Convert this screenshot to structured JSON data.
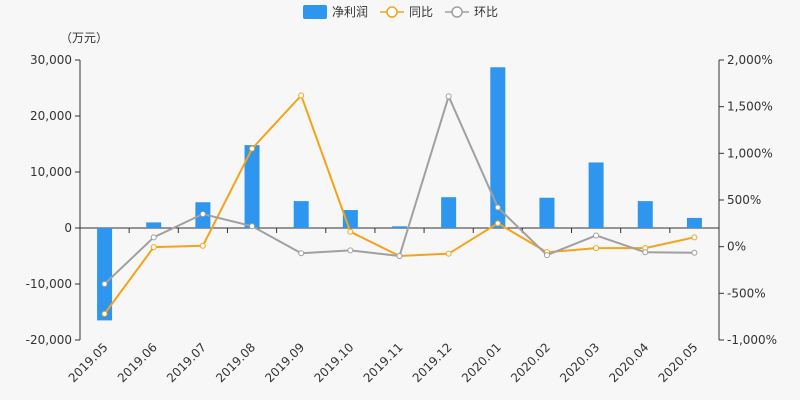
{
  "chart_data": {
    "type": "bar",
    "unit_label": "（万元）",
    "categories": [
      "2019.05",
      "2019.06",
      "2019.07",
      "2019.08",
      "2019.09",
      "2019.10",
      "2019.11",
      "2019.12",
      "2020.01",
      "2020.02",
      "2020.03",
      "2020.04",
      "2020.05"
    ],
    "series": [
      {
        "name": "净利润",
        "type": "bar",
        "axis": "left",
        "color": "#2e96ee",
        "values": [
          -16500,
          1000,
          4600,
          14800,
          4800,
          3200,
          300,
          5500,
          28700,
          5400,
          11700,
          4800,
          1800
        ]
      },
      {
        "name": "同比",
        "type": "line",
        "axis": "right",
        "color": "#f5a31a",
        "values": [
          -720,
          -5,
          10,
          1050,
          1620,
          160,
          -100,
          -75,
          250,
          -60,
          -15,
          -15,
          100
        ]
      },
      {
        "name": "环比",
        "type": "line",
        "axis": "right",
        "color": "#a0a0a0",
        "values": [
          -400,
          100,
          350,
          220,
          -70,
          -40,
          -100,
          1610,
          420,
          -90,
          120,
          -60,
          -65
        ]
      }
    ],
    "left_axis": {
      "min": -20000,
      "max": 30000,
      "ticks": [
        -20000,
        -10000,
        0,
        10000,
        20000,
        30000
      ],
      "tick_labels": [
        "-20,000",
        "-10,000",
        "0",
        "10,000",
        "20,000",
        "30,000"
      ]
    },
    "right_axis": {
      "min": -1000,
      "max": 2000,
      "ticks": [
        -1000,
        -500,
        0,
        500,
        1000,
        1500,
        2000
      ],
      "tick_labels": [
        "-1,000%",
        "-500%",
        "0%",
        "500%",
        "1,000%",
        "1,500%",
        "2,000%"
      ]
    },
    "legend": {
      "position": "top-center"
    },
    "grid": false
  }
}
